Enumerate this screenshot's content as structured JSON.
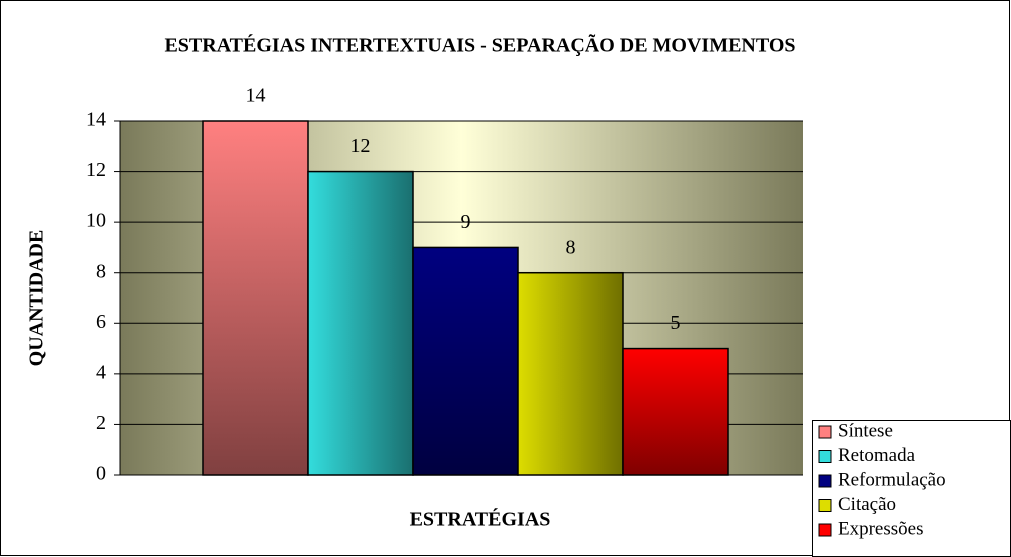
{
  "chart_data": {
    "type": "bar",
    "title": "ESTRATÉGIAS INTERTEXTUAIS - SEPARAÇÃO DE MOVIMENTOS",
    "y_label": "QUANTIDADE",
    "x_label": "ESTRATÉGIAS",
    "categories": [
      null
    ],
    "series": [
      {
        "name": "Síntese",
        "color": "#ff8080",
        "values": [
          14
        ]
      },
      {
        "name": "Retomada",
        "color": "#33dddd",
        "values": [
          12
        ]
      },
      {
        "name": "Reformulação",
        "color": "#000080",
        "values": [
          9
        ]
      },
      {
        "name": "Citação",
        "color": "#dddd00",
        "values": [
          8
        ]
      },
      {
        "name": "Expressões",
        "color": "#ff0000",
        "values": [
          5
        ]
      }
    ],
    "ylim": [
      0,
      14
    ],
    "yticks": [
      0,
      2,
      4,
      6,
      8,
      10,
      12,
      14
    ],
    "grid": true,
    "legend": "bottom-right"
  }
}
